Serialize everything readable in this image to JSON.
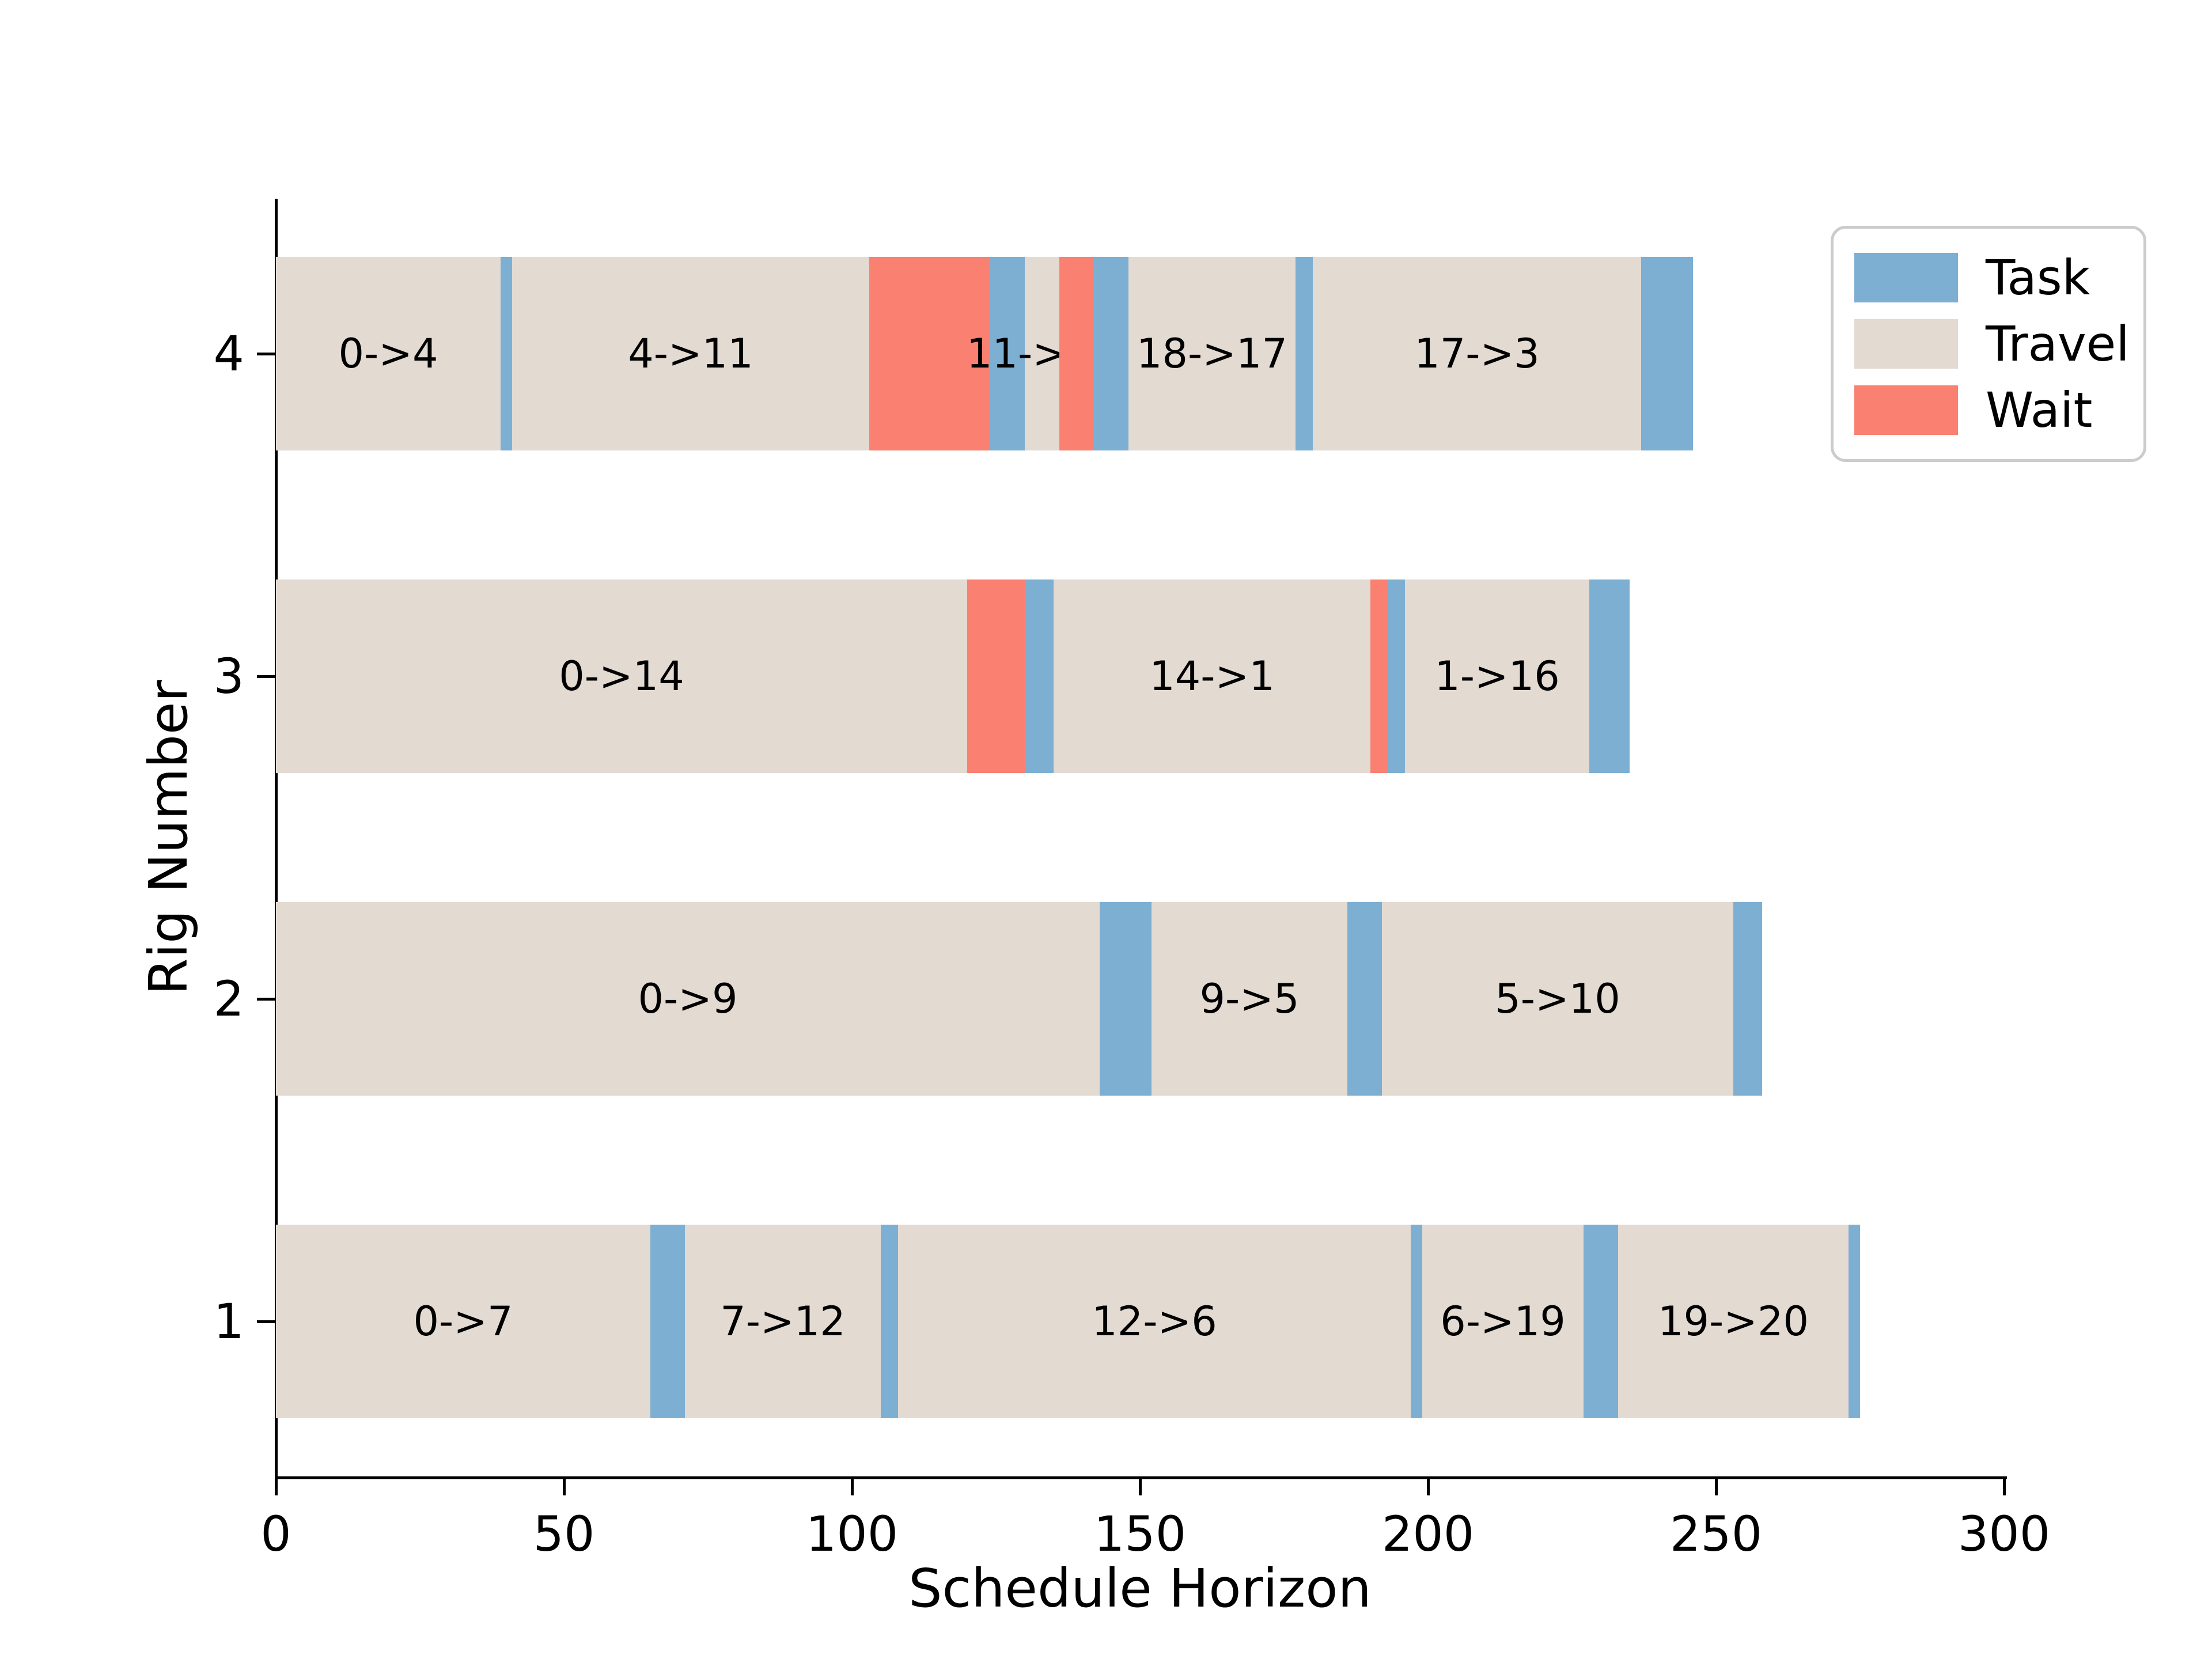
{
  "chart_data": {
    "type": "bar",
    "subtype": "gantt",
    "title": "",
    "xlabel": "Schedule Horizon",
    "ylabel": "Rig Number",
    "xlim": [
      0,
      300
    ],
    "xticks": [
      0,
      50,
      100,
      150,
      200,
      250,
      300
    ],
    "grid": false,
    "bar_height_units": 0.6,
    "legend": {
      "position": "upper-right",
      "entries": [
        {
          "label": "Task",
          "color": "#7dafd3"
        },
        {
          "label": "Travel",
          "color": "#e3dad1"
        },
        {
          "label": "Wait",
          "color": "#fa8072"
        }
      ]
    },
    "colors": {
      "task": "#7dafd3",
      "travel": "#e3dad1",
      "wait": "#fa8072"
    },
    "rows": [
      {
        "rig": "4",
        "segments": [
          {
            "type": "travel",
            "start": 0,
            "end": 39,
            "label": "0->4"
          },
          {
            "type": "task",
            "start": 39,
            "end": 41,
            "label": ""
          },
          {
            "type": "travel",
            "start": 41,
            "end": 103,
            "label": "4->11"
          },
          {
            "type": "wait",
            "start": 103,
            "end": 124,
            "label": ""
          },
          {
            "type": "task",
            "start": 124,
            "end": 130,
            "label": ""
          },
          {
            "type": "travel",
            "start": 130,
            "end": 136,
            "label": "11->18"
          },
          {
            "type": "wait",
            "start": 136,
            "end": 142,
            "label": ""
          },
          {
            "type": "task",
            "start": 142,
            "end": 148,
            "label": ""
          },
          {
            "type": "travel",
            "start": 148,
            "end": 177,
            "label": "18->17"
          },
          {
            "type": "task",
            "start": 177,
            "end": 180,
            "label": ""
          },
          {
            "type": "travel",
            "start": 180,
            "end": 237,
            "label": "17->3"
          },
          {
            "type": "task",
            "start": 237,
            "end": 246,
            "label": ""
          }
        ]
      },
      {
        "rig": "3",
        "segments": [
          {
            "type": "travel",
            "start": 0,
            "end": 120,
            "label": "0->14"
          },
          {
            "type": "wait",
            "start": 120,
            "end": 130,
            "label": ""
          },
          {
            "type": "task",
            "start": 130,
            "end": 135,
            "label": ""
          },
          {
            "type": "travel",
            "start": 135,
            "end": 190,
            "label": "14->1"
          },
          {
            "type": "wait",
            "start": 190,
            "end": 193,
            "label": ""
          },
          {
            "type": "task",
            "start": 193,
            "end": 196,
            "label": ""
          },
          {
            "type": "travel",
            "start": 196,
            "end": 228,
            "label": "1->16"
          },
          {
            "type": "task",
            "start": 228,
            "end": 235,
            "label": ""
          }
        ]
      },
      {
        "rig": "2",
        "segments": [
          {
            "type": "travel",
            "start": 0,
            "end": 143,
            "label": "0->9"
          },
          {
            "type": "task",
            "start": 143,
            "end": 152,
            "label": ""
          },
          {
            "type": "travel",
            "start": 152,
            "end": 186,
            "label": "9->5"
          },
          {
            "type": "task",
            "start": 186,
            "end": 192,
            "label": ""
          },
          {
            "type": "travel",
            "start": 192,
            "end": 253,
            "label": "5->10"
          },
          {
            "type": "task",
            "start": 253,
            "end": 258,
            "label": ""
          }
        ]
      },
      {
        "rig": "1",
        "segments": [
          {
            "type": "travel",
            "start": 0,
            "end": 65,
            "label": "0->7"
          },
          {
            "type": "task",
            "start": 65,
            "end": 71,
            "label": ""
          },
          {
            "type": "travel",
            "start": 71,
            "end": 105,
            "label": "7->12"
          },
          {
            "type": "task",
            "start": 105,
            "end": 108,
            "label": ""
          },
          {
            "type": "travel",
            "start": 108,
            "end": 197,
            "label": "12->6"
          },
          {
            "type": "task",
            "start": 197,
            "end": 199,
            "label": ""
          },
          {
            "type": "travel",
            "start": 199,
            "end": 227,
            "label": "6->19"
          },
          {
            "type": "task",
            "start": 227,
            "end": 233,
            "label": ""
          },
          {
            "type": "travel",
            "start": 233,
            "end": 273,
            "label": "19->20"
          },
          {
            "type": "task",
            "start": 273,
            "end": 275,
            "label": ""
          }
        ]
      }
    ]
  }
}
